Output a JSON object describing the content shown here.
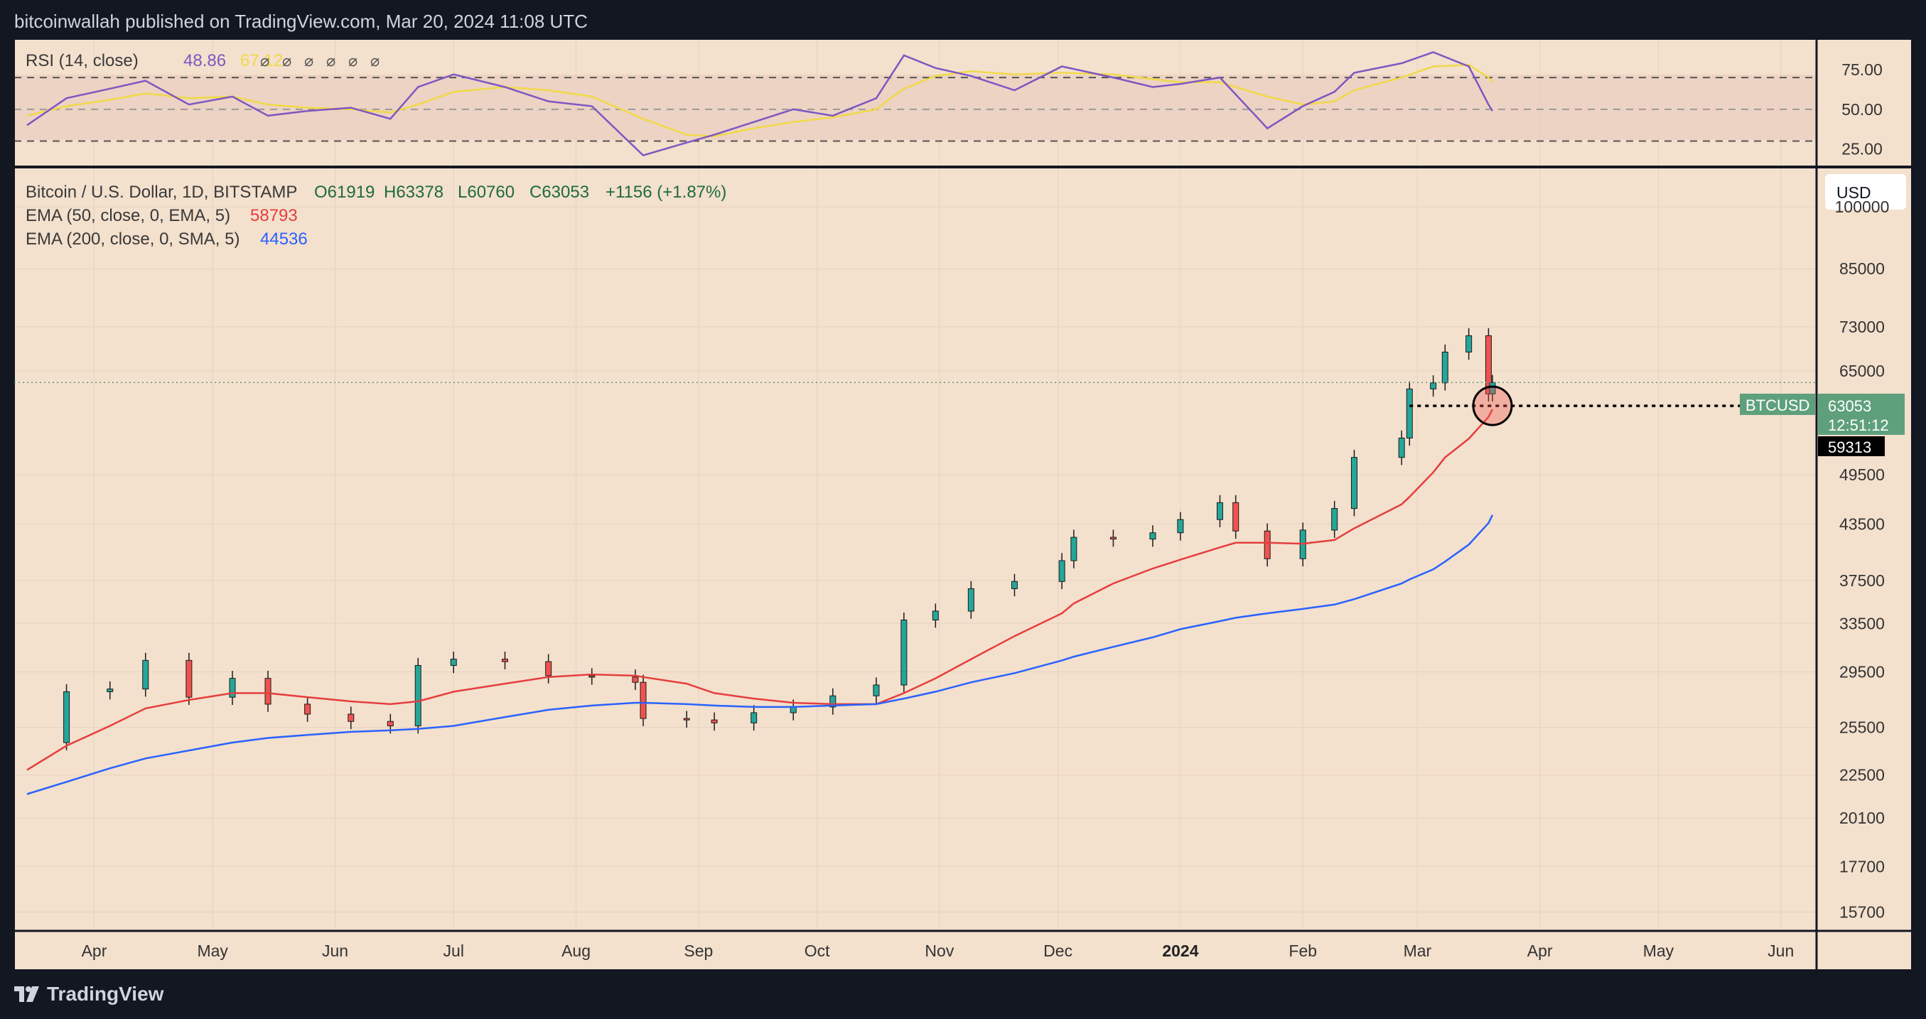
{
  "header": {
    "published": "bitcoinwallah published on TradingView.com, Mar 20, 2024 11:08 UTC"
  },
  "footer": {
    "brand": "TradingView"
  },
  "colors": {
    "background": "#f3e0cd",
    "frame": "#131722",
    "up": "#26a69a",
    "down": "#ef5350",
    "ema50": "#e53e3e",
    "ema200": "#2962ff",
    "rsi": "#7e57c2",
    "rsi_ma": "#f0d948",
    "price_label": "#5fa07c"
  },
  "rsi_panel": {
    "legend_name": "RSI (14, close)",
    "value": "48.86",
    "ma_value": "67.12",
    "na_marks": [
      "⌀",
      "⌀",
      "⌀",
      "⌀",
      "⌀",
      "⌀"
    ],
    "scale_labels": [
      "75.00",
      "50.00",
      "25.00"
    ]
  },
  "main_panel": {
    "symbol_line": "Bitcoin / U.S. Dollar, 1D, BITSTAMP",
    "ohlc": {
      "O": "O61919",
      "H": "H63378",
      "L": "L60760",
      "C": "C63053",
      "change": "+1156 (+1.87%)"
    },
    "ema50": {
      "label": "EMA (50, close, 0, EMA, 5)",
      "value": "58793"
    },
    "ema200": {
      "label": "EMA (200, close, 0, SMA, 5)",
      "value": "44536"
    },
    "currency_button": "USD",
    "price_axis": [
      "100000",
      "85000",
      "73000",
      "65000",
      "49500",
      "43500",
      "37500",
      "33500",
      "29500",
      "25500",
      "22500",
      "20100",
      "17700",
      "15700"
    ],
    "ticker_label": "BTCUSD",
    "last_price": "63053",
    "countdown": "12:51:12",
    "support_level": "59313",
    "time_axis": [
      "Apr",
      "May",
      "Jun",
      "Jul",
      "Aug",
      "Sep",
      "Oct",
      "Nov",
      "Dec",
      "2024",
      "Feb",
      "Mar",
      "Apr",
      "May",
      "Jun"
    ]
  },
  "chart_data": {
    "type": "candlestick",
    "title": "Bitcoin / U.S. Dollar, 1D, BITSTAMP",
    "y_scale": "log",
    "ylim": [
      15000,
      110000
    ],
    "x": [
      "2023-03-15",
      "2023-03-25",
      "2023-04-05",
      "2023-04-14",
      "2023-04-25",
      "2023-05-06",
      "2023-05-15",
      "2023-05-25",
      "2023-06-05",
      "2023-06-15",
      "2023-06-22",
      "2023-07-01",
      "2023-07-14",
      "2023-07-25",
      "2023-08-05",
      "2023-08-16",
      "2023-08-18",
      "2023-08-29",
      "2023-09-05",
      "2023-09-15",
      "2023-09-25",
      "2023-10-05",
      "2023-10-16",
      "2023-10-23",
      "2023-10-31",
      "2023-11-09",
      "2023-11-20",
      "2023-12-02",
      "2023-12-05",
      "2023-12-15",
      "2023-12-25",
      "2024-01-01",
      "2024-01-11",
      "2024-01-15",
      "2024-01-23",
      "2024-02-01",
      "2024-02-09",
      "2024-02-14",
      "2024-02-26",
      "2024-02-28",
      "2024-03-05",
      "2024-03-08",
      "2024-03-14",
      "2024-03-19",
      "2024-03-20"
    ],
    "series": [
      {
        "name": "BTCUSD close",
        "values": [
          24500,
          28000,
          28200,
          30400,
          27600,
          29000,
          27100,
          26400,
          25900,
          25600,
          30000,
          30500,
          30300,
          29200,
          29100,
          28700,
          26100,
          26000,
          25800,
          26500,
          26900,
          27700,
          28500,
          33800,
          34600,
          36700,
          37400,
          39500,
          42000,
          41800,
          42500,
          44000,
          46000,
          42700,
          39700,
          42800,
          45300,
          51800,
          54500,
          62000,
          63000,
          68300,
          71300,
          61200,
          63053
        ]
      },
      {
        "name": "EMA (50, close, 0, EMA, 5)",
        "values": [
          22800,
          24300,
          25600,
          26800,
          27400,
          27900,
          27900,
          27600,
          27300,
          27100,
          27300,
          28000,
          28600,
          29100,
          29300,
          29200,
          29100,
          28600,
          27900,
          27500,
          27200,
          27100,
          27100,
          27900,
          29000,
          30500,
          32400,
          34400,
          35300,
          37200,
          38700,
          39600,
          40900,
          41400,
          41400,
          41300,
          41700,
          43000,
          45800,
          46700,
          49800,
          51800,
          54400,
          57600,
          58793
        ]
      },
      {
        "name": "EMA (200, close, 0, SMA, 5)",
        "values": [
          21400,
          22100,
          22900,
          23500,
          24000,
          24500,
          24800,
          25000,
          25200,
          25300,
          25400,
          25600,
          26200,
          26700,
          27000,
          27200,
          27200,
          27100,
          27000,
          26900,
          26900,
          27000,
          27100,
          27500,
          28000,
          28700,
          29400,
          30400,
          30700,
          31500,
          32300,
          33000,
          33700,
          34000,
          34400,
          34800,
          35200,
          35700,
          37200,
          37600,
          38600,
          39400,
          41200,
          43600,
          44536
        ]
      }
    ],
    "support_line": 59313,
    "rsi": {
      "name": "RSI (14, close)",
      "ylim": [
        15,
        92
      ],
      "bands": [
        70,
        50,
        30
      ],
      "x": [
        "2023-03-15",
        "2023-03-25",
        "2023-04-05",
        "2023-04-14",
        "2023-04-25",
        "2023-05-06",
        "2023-05-15",
        "2023-05-25",
        "2023-06-05",
        "2023-06-15",
        "2023-06-22",
        "2023-07-01",
        "2023-07-14",
        "2023-07-25",
        "2023-08-05",
        "2023-08-18",
        "2023-08-29",
        "2023-09-05",
        "2023-09-15",
        "2023-09-25",
        "2023-10-05",
        "2023-10-16",
        "2023-10-23",
        "2023-10-31",
        "2023-11-09",
        "2023-11-20",
        "2023-12-02",
        "2023-12-15",
        "2023-12-25",
        "2024-01-01",
        "2024-01-11",
        "2024-01-23",
        "2024-02-01",
        "2024-02-09",
        "2024-02-14",
        "2024-02-26",
        "2024-03-05",
        "2024-03-14",
        "2024-03-19",
        "2024-03-20"
      ],
      "values": [
        40,
        57,
        63,
        68,
        53,
        58,
        46,
        49,
        51,
        44,
        64,
        72,
        64,
        55,
        52,
        21,
        29,
        34,
        42,
        50,
        46,
        57,
        84,
        76,
        71,
        62,
        77,
        70,
        64,
        66,
        70,
        38,
        52,
        61,
        73,
        79,
        86,
        77,
        53,
        49
      ],
      "ma_values": [
        46,
        52,
        56,
        60,
        57,
        58,
        53,
        51,
        50,
        48,
        53,
        61,
        64,
        62,
        58,
        44,
        34,
        33,
        38,
        42,
        45,
        50,
        63,
        71,
        74,
        72,
        73,
        72,
        69,
        67,
        67,
        58,
        53,
        55,
        62,
        70,
        77,
        78,
        70,
        67
      ]
    }
  }
}
